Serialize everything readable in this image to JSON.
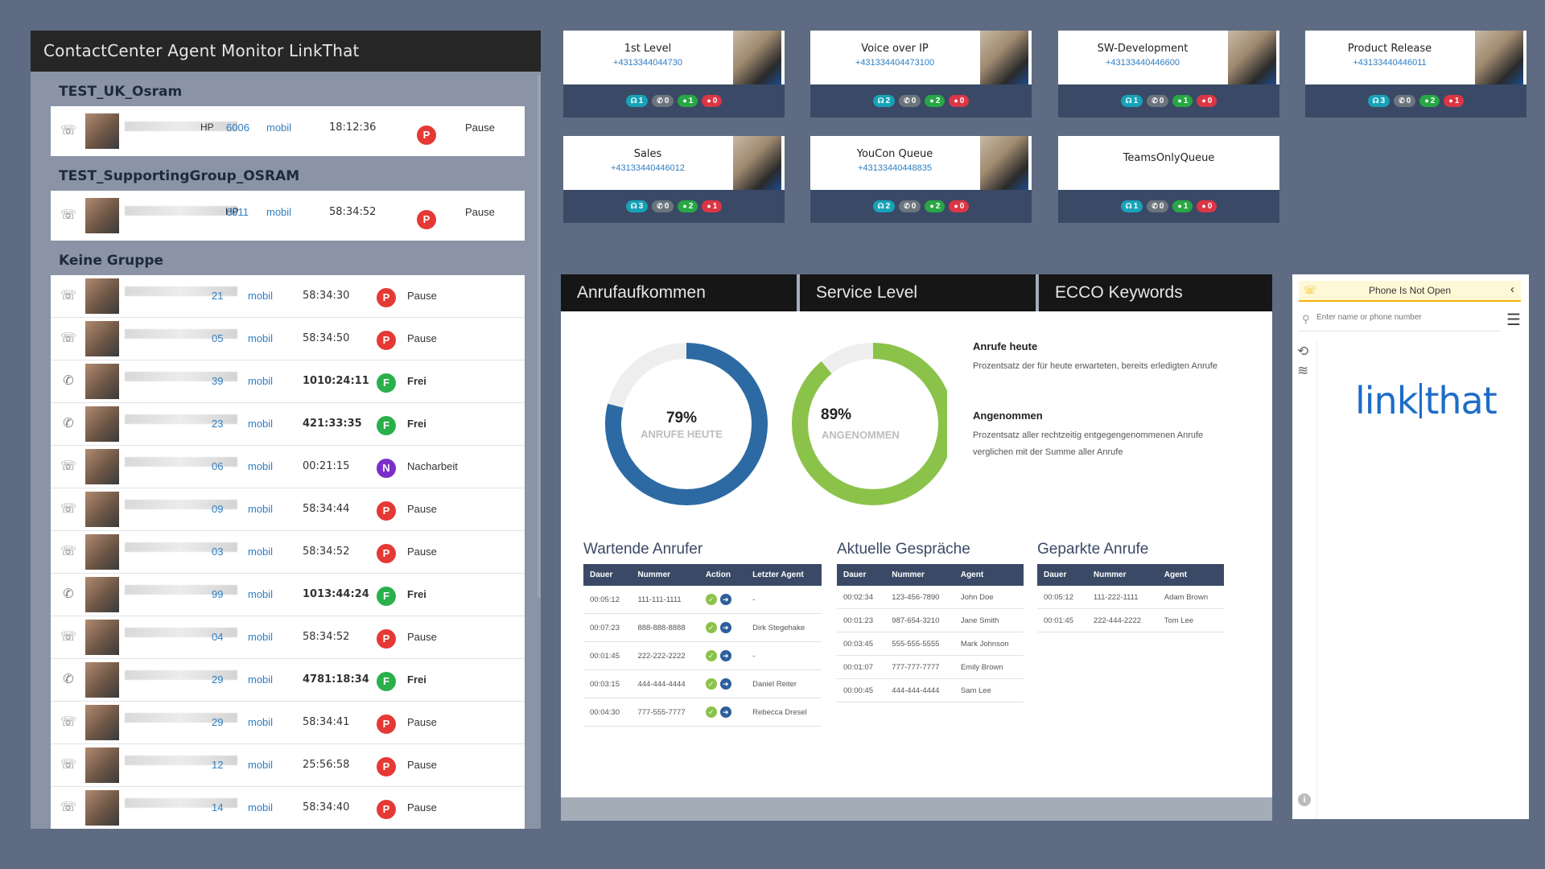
{
  "agent_monitor": {
    "title": "ContactCenter Agent Monitor LinkThat",
    "groups": [
      {
        "title": "TEST_UK_Osram",
        "agents": [
          {
            "device": "☏",
            "name_suffix": "HP",
            "ext": "6006",
            "mobile": "mobil",
            "time": "18:12:36",
            "time_bold": false,
            "badge": "P",
            "badge_color": "#e53935",
            "status": "Pause",
            "status_bold": false
          }
        ]
      },
      {
        "title": "TEST_SupportingGroup_OSRAM",
        "agents": [
          {
            "device": "☏",
            "name_suffix": "HP",
            "ext": "6011",
            "mobile": "mobil",
            "time": "58:34:52",
            "time_bold": false,
            "badge": "P",
            "badge_color": "#e53935",
            "status": "Pause",
            "status_bold": false
          }
        ]
      },
      {
        "title": "Keine Gruppe",
        "agents": [
          {
            "device": "☏",
            "name_suffix": "",
            "ext": "21",
            "mobile": "mobil",
            "time": "58:34:30",
            "time_bold": false,
            "badge": "P",
            "badge_color": "#e53935",
            "status": "Pause",
            "status_bold": false
          },
          {
            "device": "☏",
            "name_suffix": "",
            "ext": "05",
            "mobile": "mobil",
            "time": "58:34:50",
            "time_bold": false,
            "badge": "P",
            "badge_color": "#e53935",
            "status": "Pause",
            "status_bold": false
          },
          {
            "device": "✆",
            "name_suffix": "",
            "ext": "39",
            "mobile": "mobil",
            "time": "1010:24:11",
            "time_bold": true,
            "badge": "F",
            "badge_color": "#2ab04a",
            "status": "Frei",
            "status_bold": true
          },
          {
            "device": "✆",
            "name_suffix": "",
            "ext": "23",
            "mobile": "mobil",
            "time": "421:33:35",
            "time_bold": true,
            "badge": "F",
            "badge_color": "#2ab04a",
            "status": "Frei",
            "status_bold": true
          },
          {
            "device": "☏",
            "name_suffix": "",
            "ext": "06",
            "mobile": "mobil",
            "time": "00:21:15",
            "time_bold": false,
            "badge": "N",
            "badge_color": "#7b2fc9",
            "status": "Nacharbeit",
            "status_bold": false
          },
          {
            "device": "☏",
            "name_suffix": "",
            "ext": "09",
            "mobile": "mobil",
            "time": "58:34:44",
            "time_bold": false,
            "badge": "P",
            "badge_color": "#e53935",
            "status": "Pause",
            "status_bold": false
          },
          {
            "device": "☏",
            "name_suffix": "",
            "ext": "03",
            "mobile": "mobil",
            "time": "58:34:52",
            "time_bold": false,
            "badge": "P",
            "badge_color": "#e53935",
            "status": "Pause",
            "status_bold": false
          },
          {
            "device": "✆",
            "name_suffix": "",
            "ext": "99",
            "mobile": "mobil",
            "time": "1013:44:24",
            "time_bold": true,
            "badge": "F",
            "badge_color": "#2ab04a",
            "status": "Frei",
            "status_bold": true
          },
          {
            "device": "☏",
            "name_suffix": "",
            "ext": "04",
            "mobile": "mobil",
            "time": "58:34:52",
            "time_bold": false,
            "badge": "P",
            "badge_color": "#e53935",
            "status": "Pause",
            "status_bold": false
          },
          {
            "device": "✆",
            "name_suffix": "",
            "ext": "29",
            "mobile": "mobil",
            "time": "4781:18:34",
            "time_bold": true,
            "badge": "F",
            "badge_color": "#2ab04a",
            "status": "Frei",
            "status_bold": true
          },
          {
            "device": "☏",
            "name_suffix": "",
            "ext": "29",
            "mobile": "mobil",
            "time": "58:34:41",
            "time_bold": false,
            "badge": "P",
            "badge_color": "#e53935",
            "status": "Pause",
            "status_bold": false
          },
          {
            "device": "☏",
            "name_suffix": "",
            "ext": "12",
            "mobile": "mobil",
            "time": "25:56:58",
            "time_bold": false,
            "badge": "P",
            "badge_color": "#e53935",
            "status": "Pause",
            "status_bold": false
          },
          {
            "device": "☏",
            "name_suffix": "",
            "ext": "14",
            "mobile": "mobil",
            "time": "58:34:40",
            "time_bold": false,
            "badge": "P",
            "badge_color": "#e53935",
            "status": "Pause",
            "status_bold": false
          }
        ]
      }
    ]
  },
  "queues": [
    {
      "name": "1st Level",
      "number": "+4313344044730",
      "has_photo": true,
      "waiting": "1",
      "calls": "0",
      "agents_free": "1",
      "agents_busy": "0"
    },
    {
      "name": "Voice over IP",
      "number": "+431334404473100",
      "has_photo": true,
      "waiting": "2",
      "calls": "0",
      "agents_free": "2",
      "agents_busy": "0"
    },
    {
      "name": "SW-Development",
      "number": "+43133440446600",
      "has_photo": true,
      "waiting": "1",
      "calls": "0",
      "agents_free": "1",
      "agents_busy": "0"
    },
    {
      "name": "Product Release",
      "number": "+43133440446011",
      "has_photo": true,
      "waiting": "3",
      "calls": "0",
      "agents_free": "2",
      "agents_busy": "1"
    },
    {
      "name": "Sales",
      "number": "+43133440446012",
      "has_photo": true,
      "waiting": "3",
      "calls": "0",
      "agents_free": "2",
      "agents_busy": "1"
    },
    {
      "name": "YouCon Queue",
      "number": "+43133440448835",
      "has_photo": true,
      "waiting": "2",
      "calls": "0",
      "agents_free": "2",
      "agents_busy": "0"
    },
    {
      "name": "TeamsOnlyQueue",
      "number": "",
      "has_photo": false,
      "waiting": "1",
      "calls": "0",
      "agents_free": "1",
      "agents_busy": "0"
    }
  ],
  "dashboard": {
    "tabs": [
      "Anrufaufkommen",
      "Service Level",
      "ECCO Keywords"
    ],
    "donuts": [
      {
        "pct_label": "79%",
        "sub": "ANRUFE HEUTE",
        "value": 0.79,
        "color": "#2d6aa3"
      },
      {
        "pct_label": "89%",
        "sub": "ANGENOMMEN",
        "value": 0.89,
        "color": "#8bc34a"
      }
    ],
    "legend": [
      {
        "title": "Anrufe heute",
        "text": "Prozentsatz der für heute erwarteten, bereits erledigten Anrufe"
      },
      {
        "title": "Angenommen",
        "text": "Prozentsatz aller rechtzeitig entgegengenommenen Anrufe verglichen mit der Summe aller Anrufe"
      }
    ],
    "waiting": {
      "title": "Wartende Anrufer",
      "headers": [
        "Dauer",
        "Nummer",
        "Action",
        "Letzter Agent"
      ],
      "rows": [
        {
          "dauer": "00:05:12",
          "nummer": "111-111-1111",
          "agent": "-"
        },
        {
          "dauer": "00:07:23",
          "nummer": "888-888-8888",
          "agent": "Dirk Stegehake"
        },
        {
          "dauer": "00:01:45",
          "nummer": "222-222-2222",
          "agent": "-"
        },
        {
          "dauer": "00:03:15",
          "nummer": "444-444-4444",
          "agent": "Daniel Reiter"
        },
        {
          "dauer": "00:04:30",
          "nummer": "777-555-7777",
          "agent": "Rebecca Dresel"
        }
      ]
    },
    "current": {
      "title": "Aktuelle Gespräche",
      "headers": [
        "Dauer",
        "Nummer",
        "Agent"
      ],
      "rows": [
        {
          "dauer": "00:02:34",
          "nummer": "123-456-7890",
          "agent": "John Doe"
        },
        {
          "dauer": "00:01:23",
          "nummer": "987-654-3210",
          "agent": "Jane Smith"
        },
        {
          "dauer": "00:03:45",
          "nummer": "555-555-5555",
          "agent": "Mark Johnson"
        },
        {
          "dauer": "00:01:07",
          "nummer": "777-777-7777",
          "agent": "Emily Brown"
        },
        {
          "dauer": "00:00:45",
          "nummer": "444-444-4444",
          "agent": "Sam Lee"
        }
      ]
    },
    "parked": {
      "title": "Geparkte Anrufe",
      "headers": [
        "Dauer",
        "Nummer",
        "Agent"
      ],
      "rows": [
        {
          "dauer": "00:05:12",
          "nummer": "111-222-1111",
          "agent": "Adam Brown"
        },
        {
          "dauer": "00:01:45",
          "nummer": "222-444-2222",
          "agent": "Tom Lee"
        }
      ]
    }
  },
  "phone": {
    "status": "Phone Is Not Open",
    "search_placeholder": "Enter name or phone number",
    "logo_text": "link|that",
    "logo_color": "#1e6cc7"
  }
}
